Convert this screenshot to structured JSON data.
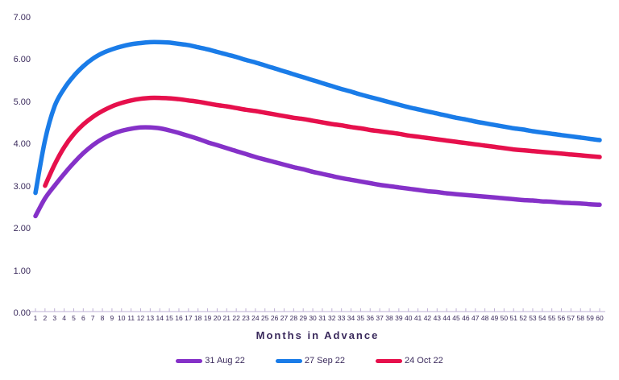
{
  "chart_data": {
    "type": "line",
    "title": "",
    "xlabel": "Months in Advance",
    "ylabel": "",
    "x": [
      1,
      2,
      3,
      4,
      5,
      6,
      7,
      8,
      9,
      10,
      11,
      12,
      13,
      14,
      15,
      16,
      17,
      18,
      19,
      20,
      21,
      22,
      23,
      24,
      25,
      26,
      27,
      28,
      29,
      30,
      31,
      32,
      33,
      34,
      35,
      36,
      37,
      38,
      39,
      40,
      41,
      42,
      43,
      44,
      45,
      46,
      47,
      48,
      49,
      50,
      51,
      52,
      53,
      54,
      55,
      56,
      57,
      58,
      59,
      60
    ],
    "ylim": [
      0,
      7
    ],
    "yticks": [
      "0.00",
      "1.00",
      "2.00",
      "3.00",
      "4.00",
      "5.00",
      "6.00",
      "7.00"
    ],
    "grid": false,
    "legend_position": "bottom",
    "series": [
      {
        "name": "31 Aug 22",
        "color": "#8531c8",
        "values": [
          2.3,
          2.72,
          3.02,
          3.3,
          3.56,
          3.79,
          3.98,
          4.13,
          4.24,
          4.32,
          4.37,
          4.4,
          4.4,
          4.38,
          4.33,
          4.27,
          4.2,
          4.13,
          4.05,
          3.98,
          3.91,
          3.84,
          3.77,
          3.7,
          3.64,
          3.58,
          3.52,
          3.46,
          3.41,
          3.35,
          3.3,
          3.25,
          3.2,
          3.16,
          3.12,
          3.08,
          3.04,
          3.01,
          2.98,
          2.95,
          2.92,
          2.89,
          2.87,
          2.84,
          2.82,
          2.8,
          2.78,
          2.76,
          2.74,
          2.72,
          2.7,
          2.68,
          2.67,
          2.65,
          2.64,
          2.62,
          2.61,
          2.6,
          2.58,
          2.57
        ]
      },
      {
        "name": "27 Sep 22",
        "color": "#1a7ce8",
        "values": [
          2.85,
          4.1,
          4.9,
          5.32,
          5.62,
          5.85,
          6.03,
          6.16,
          6.25,
          6.32,
          6.37,
          6.4,
          6.42,
          6.42,
          6.41,
          6.38,
          6.35,
          6.3,
          6.25,
          6.19,
          6.13,
          6.07,
          6.0,
          5.94,
          5.87,
          5.8,
          5.73,
          5.66,
          5.59,
          5.52,
          5.45,
          5.38,
          5.31,
          5.25,
          5.18,
          5.12,
          5.06,
          5.0,
          4.94,
          4.88,
          4.83,
          4.78,
          4.73,
          4.68,
          4.63,
          4.59,
          4.54,
          4.5,
          4.46,
          4.42,
          4.38,
          4.35,
          4.31,
          4.28,
          4.25,
          4.22,
          4.19,
          4.16,
          4.13,
          4.1
        ]
      },
      {
        "name": "24 Oct 22",
        "color": "#e6104c",
        "values": [
          null,
          3.02,
          3.52,
          3.93,
          4.24,
          4.47,
          4.65,
          4.79,
          4.9,
          4.98,
          5.04,
          5.08,
          5.1,
          5.1,
          5.09,
          5.07,
          5.04,
          5.01,
          4.97,
          4.93,
          4.9,
          4.86,
          4.82,
          4.79,
          4.75,
          4.71,
          4.67,
          4.63,
          4.6,
          4.56,
          4.52,
          4.48,
          4.45,
          4.41,
          4.38,
          4.34,
          4.31,
          4.28,
          4.25,
          4.21,
          4.18,
          4.15,
          4.12,
          4.09,
          4.06,
          4.03,
          4.0,
          3.97,
          3.94,
          3.91,
          3.88,
          3.86,
          3.84,
          3.82,
          3.8,
          3.78,
          3.76,
          3.74,
          3.72,
          3.7
        ]
      }
    ]
  },
  "colors": {
    "text": "#3a2a5c",
    "axis": "#beb0d4",
    "background": "#ffffff"
  }
}
